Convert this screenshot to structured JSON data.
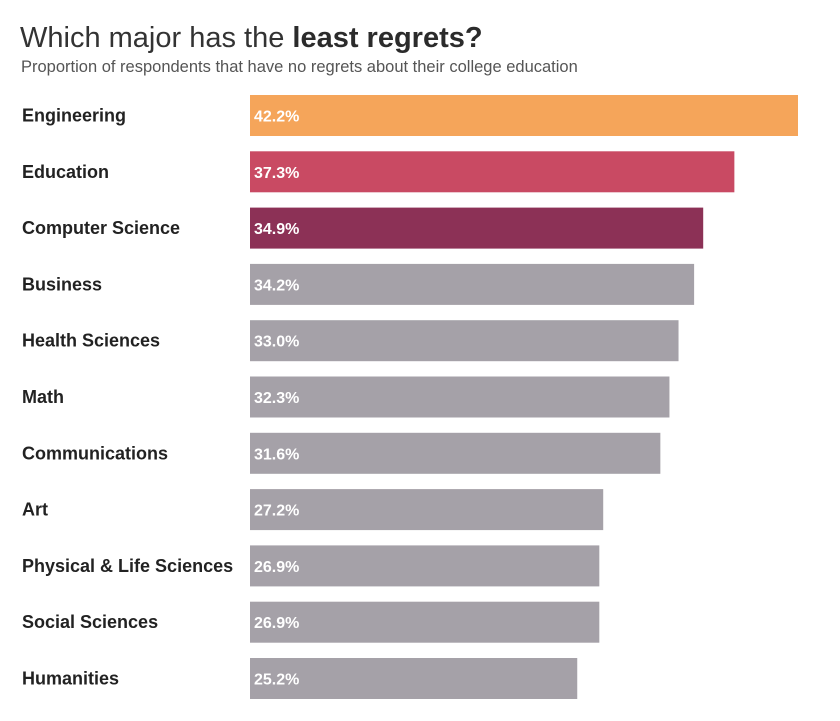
{
  "header": {
    "title_regular": "Which major has the ",
    "title_bold": "least regrets?",
    "subtitle": "Proportion of respondents that have no regrets about their college education"
  },
  "chart_data": {
    "type": "bar",
    "orientation": "horizontal",
    "title": "Which major has the least regrets?",
    "subtitle": "Proportion of respondents that have no regrets about their college education",
    "xlabel": "",
    "ylabel": "",
    "unit": "%",
    "grid": false,
    "legend": "none",
    "categories": [
      "Engineering",
      "Education",
      "Computer Science",
      "Business",
      "Health Sciences",
      "Math",
      "Communications",
      "Art",
      "Physical & Life Sciences",
      "Social Sciences",
      "Humanities"
    ],
    "values": [
      42.2,
      37.3,
      34.9,
      34.2,
      33.0,
      32.3,
      31.6,
      27.2,
      26.9,
      26.9,
      25.2
    ],
    "value_labels": [
      "42.2%",
      "37.3%",
      "34.9%",
      "34.2%",
      "33.0%",
      "32.3%",
      "31.6%",
      "27.2%",
      "26.9%",
      "26.9%",
      "25.2%"
    ],
    "xlim": [
      0,
      42.2
    ],
    "colors": [
      "#f5a55a",
      "#c94a63",
      "#8c3156",
      "#a5a1a8",
      "#a5a1a8",
      "#a5a1a8",
      "#a5a1a8",
      "#a5a1a8",
      "#a5a1a8",
      "#a5a1a8",
      "#a5a1a8"
    ]
  }
}
